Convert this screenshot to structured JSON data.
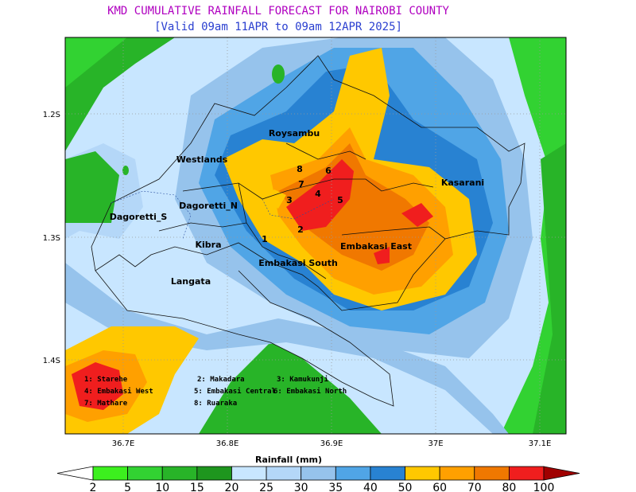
{
  "header": {
    "title": "KMD CUMULATIVE RAINFALL FORECAST FOR NAIROBI COUNTY",
    "subtitle": "[Valid 09am 11APR to 09am 12APR 2025]"
  },
  "axes": {
    "y_ticks": [
      "1.2S",
      "1.3S",
      "1.4S"
    ],
    "x_ticks": [
      "36.7E",
      "36.8E",
      "36.9E",
      "37E",
      "37.1E"
    ]
  },
  "regions": [
    "Roysambu",
    "Westlands",
    "Kasarani",
    "Dagoretti_N",
    "Dagoretti_S",
    "Kibra",
    "Embakasi East",
    "Embakasi South",
    "Langata"
  ],
  "region_numbers": [
    "1",
    "2",
    "3",
    "4",
    "5",
    "6",
    "7",
    "8"
  ],
  "key": [
    "1: Starehe",
    "4: Embakasi West",
    "7: Mathare",
    "2: Makadara",
    "5: Embakasi Central",
    "8: Ruaraka",
    "3: Kamukunji",
    "6: Embakasi North"
  ],
  "colorbar": {
    "label": "Rainfall (mm)",
    "levels": [
      2,
      5,
      10,
      15,
      20,
      25,
      30,
      35,
      40,
      50,
      60,
      70,
      80,
      100
    ],
    "colors": [
      "#ffffff",
      "#3cf01e",
      "#32d232",
      "#28b428",
      "#1e961e",
      "#c8e6ff",
      "#b4d7f8",
      "#96c3ec",
      "#50a5e6",
      "#2882d2",
      "#ffc800",
      "#ffa000",
      "#f07800",
      "#f01e1e",
      "#a00000"
    ]
  }
}
